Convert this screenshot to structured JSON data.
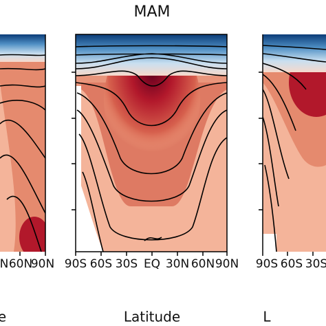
{
  "chart_data": [
    {
      "type": "contour",
      "categories": [
        "N",
        "60N",
        "90N"
      ],
      "xlabel": "e"
    },
    {
      "type": "contour",
      "title": "MAM",
      "categories": [
        "90S",
        "60S",
        "30S",
        "EQ",
        "30N",
        "60N",
        "90N"
      ],
      "xlabel": "Latitude"
    },
    {
      "type": "contour",
      "categories": [
        "90S",
        "60S",
        "30S"
      ],
      "xlabel": "L"
    }
  ]
}
